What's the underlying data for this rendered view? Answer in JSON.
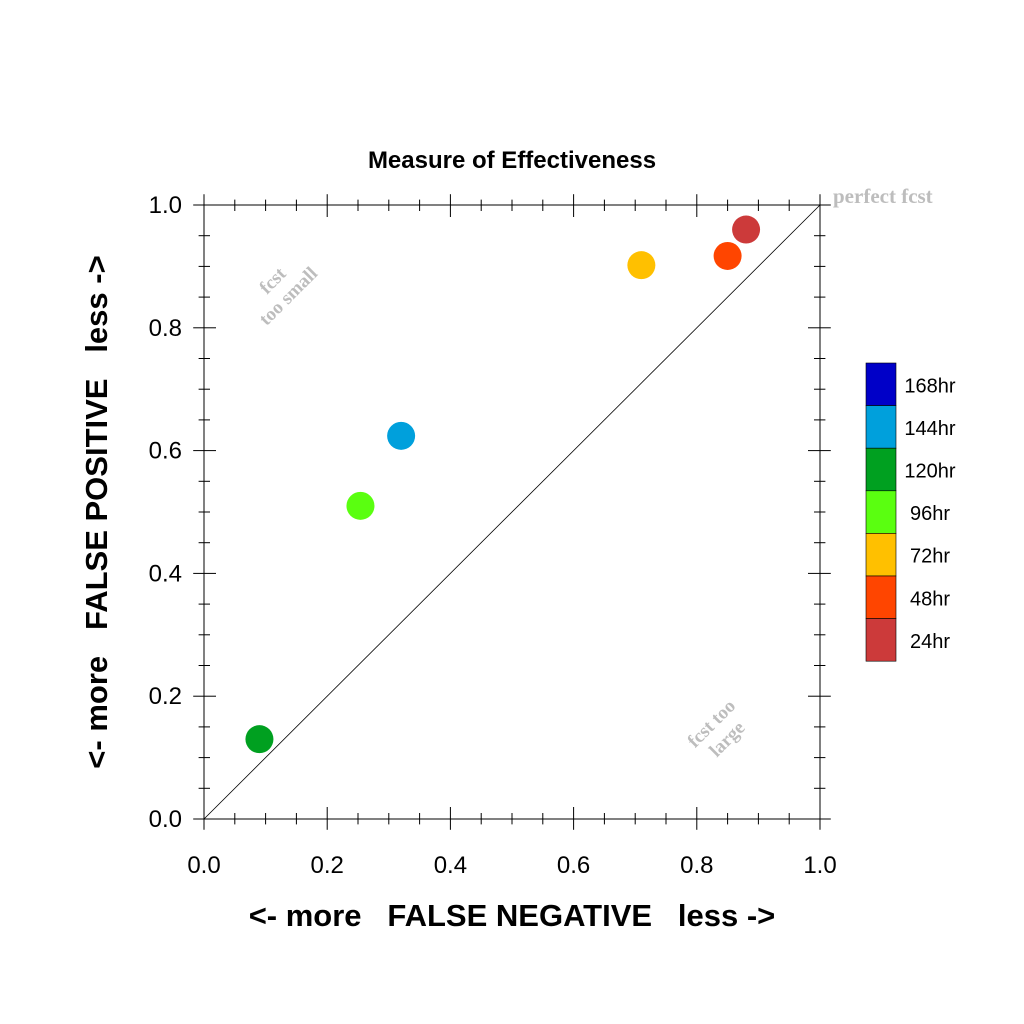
{
  "chart_data": {
    "type": "scatter",
    "title": "Measure of Effectiveness",
    "xlabel": "<- more   FALSE NEGATIVE   less ->",
    "ylabel": "<- more   FALSE POSITIVE   less ->",
    "xlim": [
      0.0,
      1.0
    ],
    "ylim": [
      0.0,
      1.0
    ],
    "x_ticks": [
      "0.0",
      "0.2",
      "0.4",
      "0.6",
      "0.8",
      "1.0"
    ],
    "y_ticks": [
      "0.0",
      "0.2",
      "0.4",
      "0.6",
      "0.8",
      "1.0"
    ],
    "grid": false,
    "legend_position": "right",
    "reference_line": {
      "from": [
        0,
        0
      ],
      "to": [
        1,
        1
      ],
      "label": "perfect fcst"
    },
    "annotations": {
      "upper_left": [
        "fcst",
        "too small"
      ],
      "lower_right": [
        "fcst too",
        "large"
      ]
    },
    "series": [
      {
        "name": "24hr",
        "color": "#cc3a3a",
        "x": 0.88,
        "y": 0.96
      },
      {
        "name": "48hr",
        "color": "#ff4500",
        "x": 0.85,
        "y": 0.917
      },
      {
        "name": "72hr",
        "color": "#ffc000",
        "x": 0.71,
        "y": 0.902
      },
      {
        "name": "96hr",
        "color": "#5aff10",
        "x": 0.254,
        "y": 0.51
      },
      {
        "name": "120hr",
        "color": "#00a020",
        "x": 0.09,
        "y": 0.13
      },
      {
        "name": "144hr",
        "color": "#00a0dc",
        "x": 0.32,
        "y": 0.624
      },
      {
        "name": "168hr",
        "color": "#0000c8",
        "x": null,
        "y": null
      }
    ],
    "legend_order": [
      "168hr",
      "144hr",
      "120hr",
      "96hr",
      "72hr",
      "48hr",
      "24hr"
    ]
  }
}
